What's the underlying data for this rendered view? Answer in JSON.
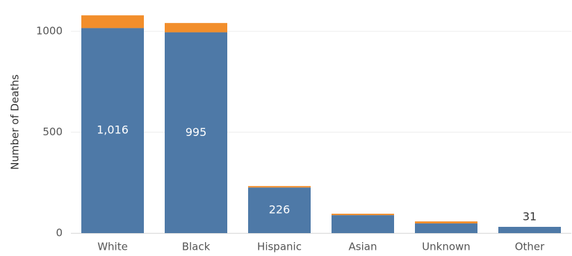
{
  "chart_data": {
    "type": "stacked-bar",
    "y_label": "Number of Deaths",
    "categories": [
      "White",
      "Black",
      "Hispanic",
      "Asian",
      "Unknown",
      "Other"
    ],
    "series": [
      {
        "color": "#4e79a7",
        "values": [
          1016,
          995,
          226,
          89,
          48,
          31
        ],
        "value_labels": [
          "1,016",
          "995",
          "226",
          null,
          null,
          "31"
        ]
      },
      {
        "color": "#f28e2b",
        "values": [
          63,
          46,
          7,
          7,
          10,
          0
        ]
      }
    ],
    "ylim": [
      0,
      1100
    ],
    "yticks": [
      0,
      500,
      1000
    ],
    "grid": true
  }
}
